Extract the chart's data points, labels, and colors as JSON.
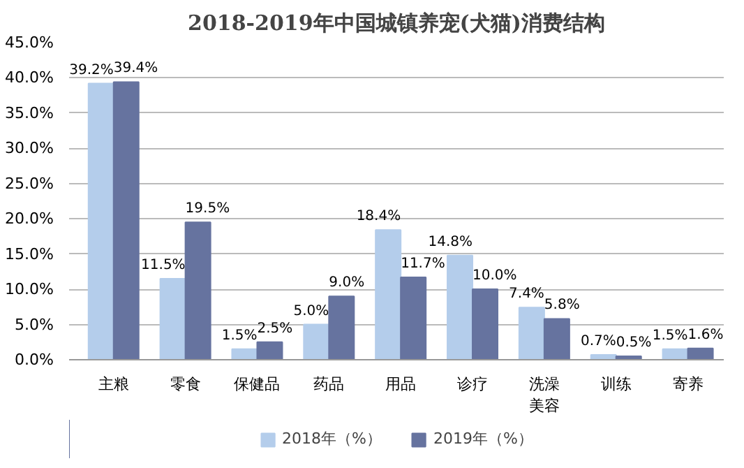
{
  "chart_data": {
    "type": "bar",
    "title": "2018-2019年中国城镇养宠(犬猫)消费结构",
    "categories": [
      "主粮",
      "零食",
      "保健品",
      "药品",
      "用品",
      "诊疗",
      "洗澡美容",
      "训练",
      "寄养"
    ],
    "series": [
      {
        "name": "2018年（%）",
        "color": "#b4cdeb",
        "values": [
          39.2,
          11.5,
          1.5,
          5.0,
          18.4,
          14.8,
          7.4,
          0.7,
          1.5
        ],
        "value_labels": [
          "39.2%",
          "11.5%",
          "1.5%",
          "5.0%",
          "18.4%",
          "14.8%",
          "7.4%",
          "0.7%",
          "1.5%"
        ]
      },
      {
        "name": "2019年（%）",
        "color": "#66739f",
        "values": [
          39.4,
          19.5,
          2.5,
          9.0,
          11.7,
          10.0,
          5.8,
          0.5,
          1.6
        ],
        "value_labels": [
          "39.4%",
          "19.5%",
          "2.5%",
          "9.0%",
          "11.7%",
          "10.0%",
          "5.8%",
          "0.5%",
          "1.6%"
        ]
      }
    ],
    "ylim": [
      0,
      45
    ],
    "yticks": [
      {
        "value": 0,
        "label": "0.0%"
      },
      {
        "value": 5,
        "label": "5.0%"
      },
      {
        "value": 10,
        "label": "10.0%"
      },
      {
        "value": 15,
        "label": "15.0%"
      },
      {
        "value": 20,
        "label": "20.0%"
      },
      {
        "value": 25,
        "label": "25.0%"
      },
      {
        "value": 30,
        "label": "30.0%"
      },
      {
        "value": 35,
        "label": "35.0%"
      },
      {
        "value": 40,
        "label": "40.0%"
      },
      {
        "value": 45,
        "label": "45.0%"
      }
    ],
    "grid": "y",
    "legend": "bottom"
  }
}
